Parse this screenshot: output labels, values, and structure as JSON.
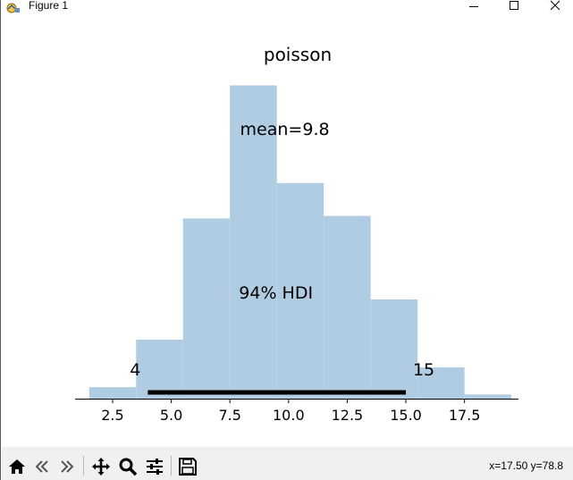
{
  "window": {
    "title": "Figure 1"
  },
  "toolbar": {
    "buttons": [
      {
        "name": "home",
        "icon": "home-icon"
      },
      {
        "name": "back",
        "icon": "back-arrow-icon"
      },
      {
        "name": "forward",
        "icon": "forward-arrow-icon"
      },
      {
        "name": "pan",
        "icon": "move-icon"
      },
      {
        "name": "zoom",
        "icon": "magnifier-icon"
      },
      {
        "name": "configure-subplots",
        "icon": "sliders-icon"
      },
      {
        "name": "save",
        "icon": "floppy-icon"
      }
    ],
    "coords": "x=17.50 y=78.8"
  },
  "colors": {
    "bar": "#b0cce2",
    "hdi_line": "#000000"
  },
  "chart_data": {
    "type": "bar",
    "title": "poisson",
    "bins": [
      {
        "left": 1.5,
        "right": 3.5,
        "height": 0.022
      },
      {
        "left": 3.5,
        "right": 5.5,
        "height": 0.113
      },
      {
        "left": 5.5,
        "right": 7.5,
        "height": 0.345
      },
      {
        "left": 7.5,
        "right": 9.5,
        "height": 0.6
      },
      {
        "left": 9.5,
        "right": 11.5,
        "height": 0.413
      },
      {
        "left": 11.5,
        "right": 13.5,
        "height": 0.35
      },
      {
        "left": 13.5,
        "right": 15.5,
        "height": 0.19
      },
      {
        "left": 15.5,
        "right": 17.5,
        "height": 0.06
      },
      {
        "left": 17.5,
        "right": 19.5,
        "height": 0.008
      }
    ],
    "xlim": [
      0.9,
      19.8
    ],
    "ylim": [
      0,
      0.63
    ],
    "xticks": [
      "2.5",
      "5.0",
      "7.5",
      "10.0",
      "12.5",
      "15.0",
      "17.5"
    ],
    "xtick_values": [
      2.5,
      5.0,
      7.5,
      10.0,
      12.5,
      15.0,
      17.5
    ],
    "mean_label": "mean=9.8",
    "mean_value": 9.8,
    "hdi_label": "94% HDI",
    "hdi": {
      "low": 4,
      "high": 15,
      "low_label": "4",
      "high_label": "15"
    }
  }
}
